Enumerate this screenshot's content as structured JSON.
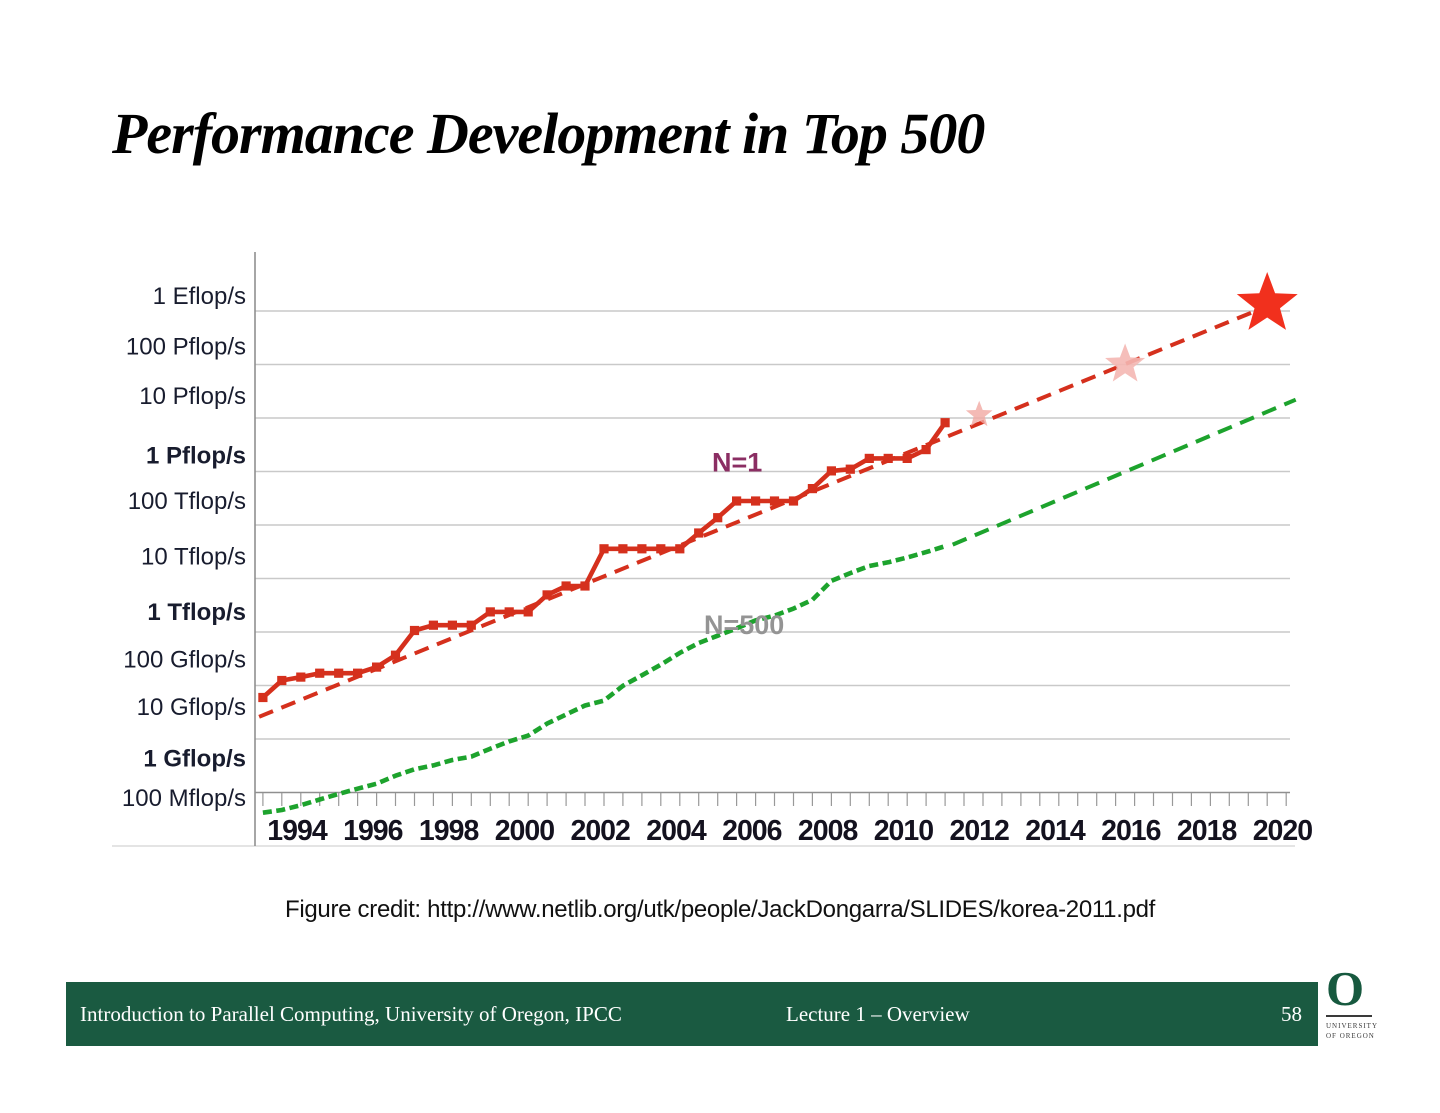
{
  "slide": {
    "title": "Performance Development in Top 500",
    "figure_credit": "Figure credit: http://www.netlib.org/utk/people/JackDongarra/SLIDES/korea-2011.pdf",
    "footer": {
      "left": "Introduction to Parallel Computing, University of Oregon, IPCC",
      "center": "Lecture 1 – Overview",
      "page_number": "58",
      "bar_color": "#1a5a41"
    },
    "logo": {
      "letter": "O",
      "line1": "UNIVERSITY",
      "line2": "OF OREGON",
      "color": "#17593f"
    }
  },
  "chart_data": {
    "type": "line",
    "title": "",
    "xlabel": "",
    "ylabel": "",
    "y_axis": {
      "scale": "log",
      "unit": "flop/s",
      "range_flops": [
        100000000.0,
        1e+18
      ],
      "labels": [
        {
          "text": "1 Eflop/s",
          "bold": false
        },
        {
          "text": "100 Pflop/s",
          "bold": false
        },
        {
          "text": "10 Pflop/s",
          "bold": false
        },
        {
          "text": "1 Pflop/s",
          "bold": true
        },
        {
          "text": "100 Tflop/s",
          "bold": false
        },
        {
          "text": "10 Tflop/s",
          "bold": false
        },
        {
          "text": "1 Tflop/s",
          "bold": true
        },
        {
          "text": "100 Gflop/s",
          "bold": false
        },
        {
          "text": "10 Gflop/s",
          "bold": false
        },
        {
          "text": "1 Gflop/s",
          "bold": true
        },
        {
          "text": "100 Mflop/s",
          "bold": false
        }
      ]
    },
    "x_axis": {
      "range_years": [
        1993,
        2020.8
      ],
      "tick_years": [
        1994,
        1996,
        1998,
        2000,
        2002,
        2004,
        2006,
        2008,
        2010,
        2012,
        2014,
        2016,
        2018,
        2020
      ],
      "minor_tick_interval_years": 0.5
    },
    "grid": true,
    "legend_position": "inline-annotations",
    "series": [
      {
        "name": "N=1",
        "color": "#d5301d",
        "style": "solid",
        "markers": true,
        "unit": "Gflop/s",
        "points": [
          [
            1993.1,
            59.7
          ],
          [
            1993.6,
            124
          ],
          [
            1994.1,
            143.4
          ],
          [
            1994.6,
            170
          ],
          [
            1995.1,
            170
          ],
          [
            1995.6,
            170
          ],
          [
            1996.1,
            220.4
          ],
          [
            1996.6,
            368.2
          ],
          [
            1997.1,
            1068
          ],
          [
            1997.6,
            1338
          ],
          [
            1998.1,
            1338
          ],
          [
            1998.6,
            1338
          ],
          [
            1999.1,
            2379.6
          ],
          [
            1999.6,
            2379.6
          ],
          [
            2000.1,
            2379.6
          ],
          [
            2000.6,
            4938
          ],
          [
            2001.1,
            7226
          ],
          [
            2001.6,
            7226
          ],
          [
            2002.1,
            35860
          ],
          [
            2002.6,
            35860
          ],
          [
            2003.1,
            35860
          ],
          [
            2003.6,
            35860
          ],
          [
            2004.1,
            35860
          ],
          [
            2004.6,
            70720
          ],
          [
            2005.1,
            136800
          ],
          [
            2005.6,
            280600
          ],
          [
            2006.1,
            280600
          ],
          [
            2006.6,
            280600
          ],
          [
            2007.1,
            280600
          ],
          [
            2007.6,
            478200
          ],
          [
            2008.1,
            1026000
          ],
          [
            2008.6,
            1105000
          ],
          [
            2009.1,
            1759000
          ],
          [
            2009.6,
            1759000
          ],
          [
            2010.1,
            1759000
          ],
          [
            2010.6,
            2566000
          ],
          [
            2011.1,
            8162000
          ]
        ]
      },
      {
        "name": "N=500",
        "color": "#1da32d",
        "style": "short-dash",
        "markers": false,
        "unit": "Gflop/s",
        "points": [
          [
            1993.1,
            0.42
          ],
          [
            1993.6,
            0.47
          ],
          [
            1994.1,
            0.58
          ],
          [
            1994.6,
            0.74
          ],
          [
            1995.1,
            0.94
          ],
          [
            1995.6,
            1.18
          ],
          [
            1996.1,
            1.46
          ],
          [
            1996.6,
            2.06
          ],
          [
            1997.1,
            2.72
          ],
          [
            1997.6,
            3.21
          ],
          [
            1998.1,
            4.05
          ],
          [
            1998.6,
            4.69
          ],
          [
            1999.1,
            6.59
          ],
          [
            1999.6,
            9.01
          ],
          [
            2000.1,
            11.6
          ],
          [
            2000.6,
            19.4
          ],
          [
            2001.1,
            28.7
          ],
          [
            2001.6,
            42.2
          ],
          [
            2002.1,
            52.2
          ],
          [
            2002.6,
            98.7
          ],
          [
            2003.1,
            155
          ],
          [
            2003.6,
            245
          ],
          [
            2004.1,
            406
          ],
          [
            2004.6,
            624
          ],
          [
            2005.1,
            851
          ],
          [
            2005.6,
            1166
          ],
          [
            2006.1,
            1646
          ],
          [
            2006.6,
            2026
          ],
          [
            2007.1,
            2737
          ],
          [
            2007.6,
            4005
          ],
          [
            2008.1,
            9003
          ],
          [
            2008.6,
            12640
          ],
          [
            2009.1,
            17100
          ],
          [
            2009.6,
            20050
          ],
          [
            2010.1,
            24670
          ],
          [
            2010.6,
            31120
          ],
          [
            2011.1,
            40190
          ]
        ]
      },
      {
        "name": "N=1 trend",
        "color": "#d5301d",
        "style": "trend-dash",
        "markers": false,
        "unit": "Gflop/s",
        "points": [
          [
            1993.0,
            26
          ],
          [
            2019.5,
            1150000000.0
          ]
        ]
      },
      {
        "name": "N=500 trend",
        "color": "#1da32d",
        "style": "trend-dash",
        "markers": false,
        "unit": "Gflop/s",
        "points": [
          [
            2011.3,
            43000
          ],
          [
            2020.35,
            22000000.0
          ]
        ]
      }
    ],
    "milestone_stars": [
      {
        "year": 2012.0,
        "gflops": 11500000.0,
        "radius": 14,
        "color": "#f1a9a2",
        "opacity": 0.8
      },
      {
        "year": 2015.85,
        "gflops": 100000000.0,
        "radius": 21,
        "color": "#f4b7b2",
        "opacity": 0.9
      },
      {
        "year": 2019.6,
        "gflops": 1350000000.0,
        "radius": 32,
        "color": "#f1301d",
        "opacity": 1
      }
    ],
    "annotations": [
      {
        "text": "N=1",
        "color": "#8b2e63",
        "year": 2004.95,
        "gflops": 1000000.0
      },
      {
        "text": "N=500",
        "color": "#949494",
        "year": 2004.74,
        "gflops": 920
      }
    ]
  }
}
